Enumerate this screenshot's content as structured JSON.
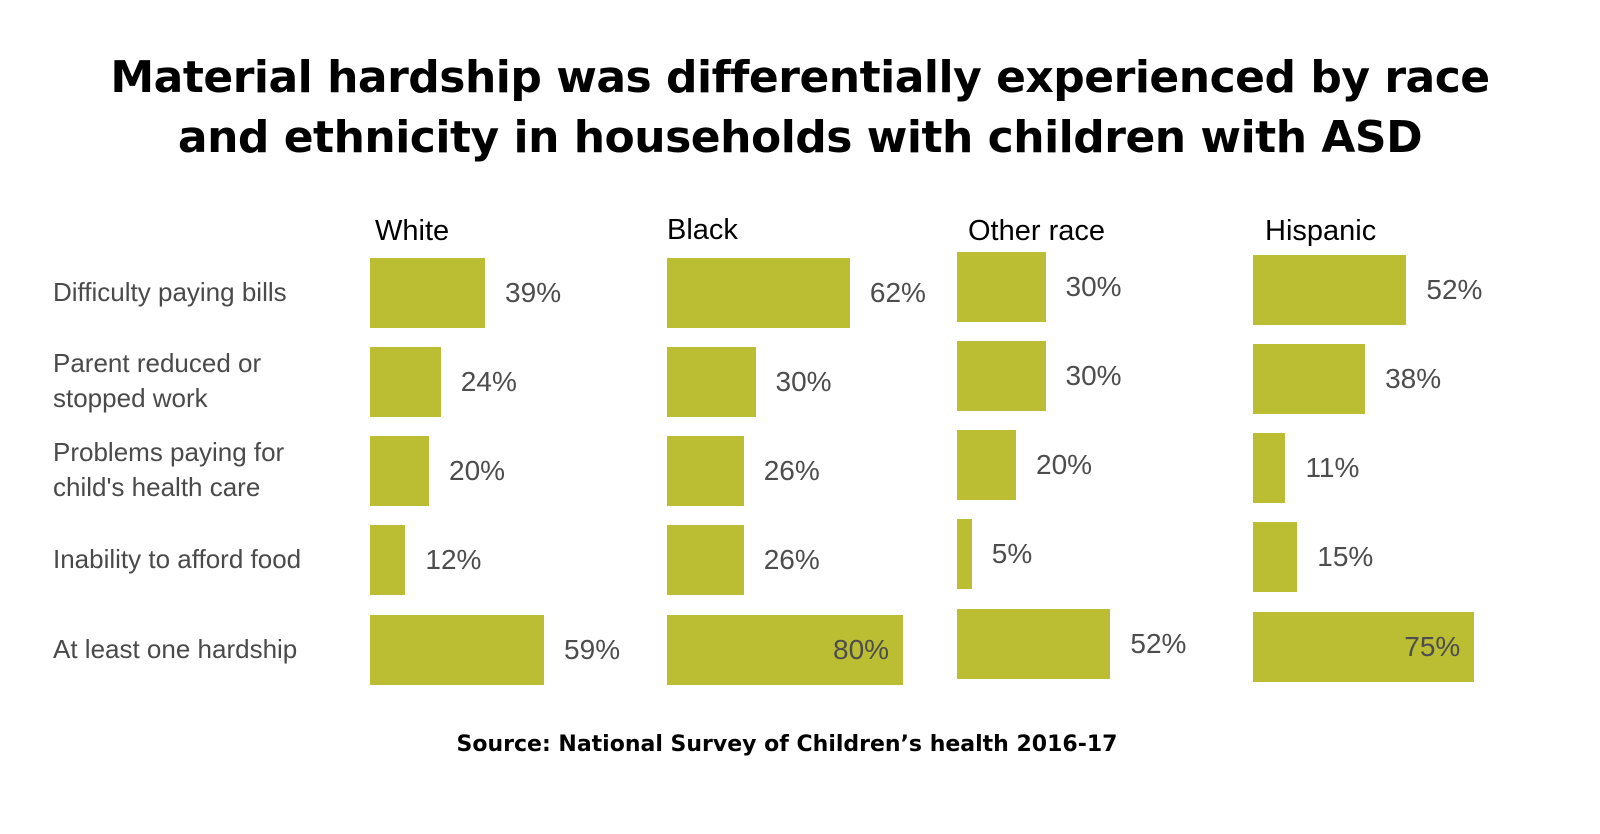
{
  "title_lines": [
    "Material hardship was differentially experienced by race",
    "and ethnicity in households with children with ASD"
  ],
  "source": "Source: National Survey of Children’s health 2016-17",
  "colors": {
    "bar": "#BBBE33",
    "label_text": "#4A4A4A",
    "value_text": "#4D4D4D"
  },
  "chart_data": {
    "type": "bar",
    "orientation": "horizontal",
    "title": "Material hardship was differentially experienced by race and ethnicity in households with children with ASD",
    "categories": [
      "Difficulty paying bills",
      "Parent reduced or stopped work",
      "Problems paying for child's health care",
      "Inability to afford food",
      "At least one hardship"
    ],
    "category_display": [
      [
        "Difficulty paying bills"
      ],
      [
        "Parent reduced or",
        "stopped work"
      ],
      [
        "Problems paying for",
        "child's health care"
      ],
      [
        "Inability to afford food"
      ],
      [
        "At least one hardship"
      ]
    ],
    "series": [
      {
        "name": "White",
        "values": [
          39,
          24,
          20,
          12,
          59
        ],
        "labels": [
          "39%",
          "24%",
          "20%",
          "12%",
          "59%"
        ]
      },
      {
        "name": "Black",
        "values": [
          62,
          30,
          26,
          26,
          80
        ],
        "labels": [
          "62%",
          "30%",
          "26%",
          "26%",
          "80%"
        ]
      },
      {
        "name": "Other race",
        "values": [
          30,
          30,
          20,
          5,
          52
        ],
        "labels": [
          "30%",
          "30%",
          "20%",
          "5%",
          "52%"
        ]
      },
      {
        "name": "Hispanic",
        "values": [
          52,
          38,
          11,
          15,
          75
        ],
        "labels": [
          "52%",
          "38%",
          "11%",
          "15%",
          "75%"
        ]
      }
    ],
    "unit": "%",
    "xlim": [
      0,
      100
    ],
    "grid": false,
    "legend": "none",
    "xlabel": "",
    "ylabel": "",
    "source": "Source: National Survey of Children’s health 2016-17"
  }
}
